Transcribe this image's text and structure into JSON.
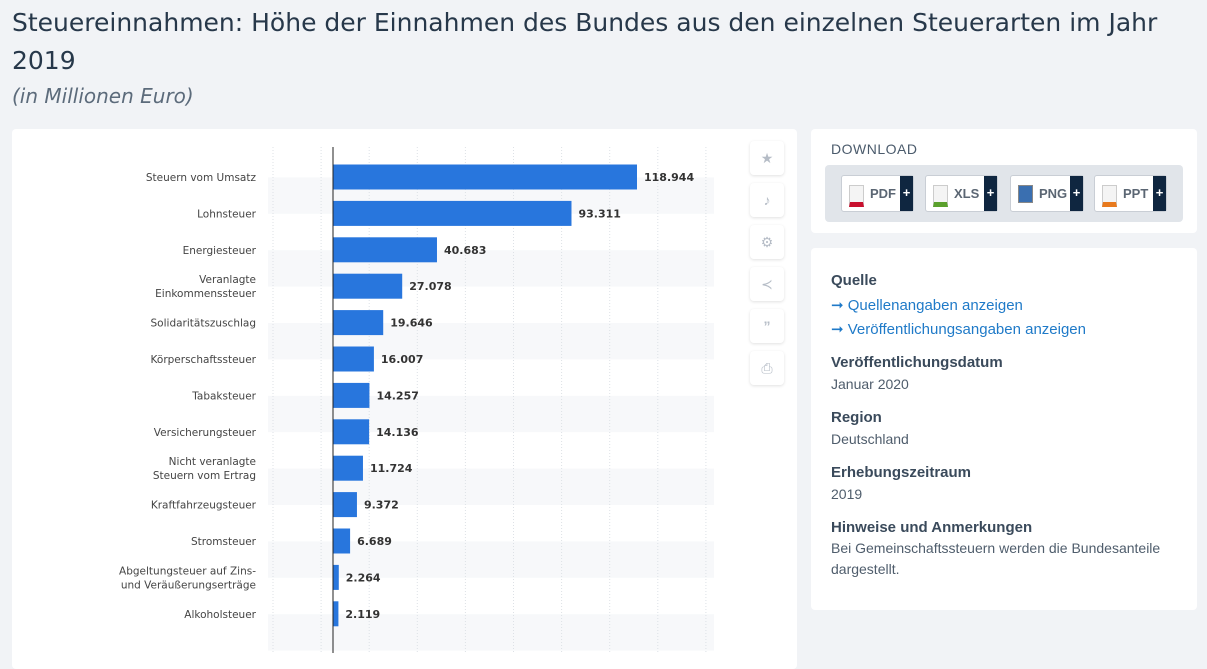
{
  "header": {
    "title": "Steuereinnahmen: Höhe der Einnahmen des Bundes aus den einzelnen Steuerarten im Jahr 2019",
    "subtitle": "(in Millionen Euro)"
  },
  "chart_data": {
    "type": "bar",
    "orientation": "horizontal",
    "title": "",
    "xlabel": "",
    "ylabel": "",
    "grid": true,
    "bar_color": "#2876dd",
    "categories": [
      "Steuern vom Umsatz",
      "Lohnsteuer",
      "Energiesteuer",
      "Veranlagte Einkommenssteuer",
      "Solidaritätszuschlag",
      "Körperschaftssteuer",
      "Tabaksteuer",
      "Versicherungsteuer",
      "Nicht veranlagte Steuern vom Ertrag",
      "Kraftfahrzeugsteuer",
      "Stromsteuer",
      "Abgeltungsteuer auf Zins- und Veräußerungserträge",
      "Alkoholsteuer"
    ],
    "category_lines": [
      [
        "Steuern vom Umsatz"
      ],
      [
        "Lohnsteuer"
      ],
      [
        "Energiesteuer"
      ],
      [
        "Veranlagte",
        "Einkommenssteuer"
      ],
      [
        "Solidaritätszuschlag"
      ],
      [
        "Körperschaftssteuer"
      ],
      [
        "Tabaksteuer"
      ],
      [
        "Versicherungsteuer"
      ],
      [
        "Nicht veranlagte",
        "Steuern vom Ertrag"
      ],
      [
        "Kraftfahrzeugsteuer"
      ],
      [
        "Stromsteuer"
      ],
      [
        "Abgeltungsteuer auf Zins-",
        "und Veräußerungserträge"
      ],
      [
        "Alkoholsteuer"
      ]
    ],
    "values": [
      118944,
      93311,
      40683,
      27078,
      19646,
      16007,
      14257,
      14136,
      11724,
      9372,
      6689,
      2264,
      2119
    ],
    "value_labels": [
      "118.944",
      "93.311",
      "40.683",
      "27.078",
      "19.646",
      "16.007",
      "14.257",
      "14.136",
      "11.724",
      "9.372",
      "6.689",
      "2.264",
      "2.119"
    ]
  },
  "side_tools": [
    "star-icon",
    "bell-icon",
    "gear-icon",
    "share-icon",
    "quote-icon",
    "print-icon"
  ],
  "download": {
    "title": "DOWNLOAD",
    "buttons": [
      {
        "label": "PDF",
        "color": "#c8102e"
      },
      {
        "label": "XLS",
        "color": "#5aa02c"
      },
      {
        "label": "PNG",
        "color": "#3a6fb0"
      },
      {
        "label": "PPT",
        "color": "#e87a1e"
      }
    ],
    "plus": "+"
  },
  "info": {
    "source_heading": "Quelle",
    "source_link": "➞ Quellenangaben anzeigen",
    "publication_link": "➞ Veröffentlichungsangaben anzeigen",
    "date_heading": "Veröffentlichungsdatum",
    "date": "Januar 2020",
    "region_heading": "Region",
    "region": "Deutschland",
    "period_heading": "Erhebungszeitraum",
    "period": "2019",
    "notes_heading": "Hinweise und Anmerkungen",
    "notes": "Bei Gemeinschaftssteuern werden die Bundesanteile dargestellt."
  }
}
